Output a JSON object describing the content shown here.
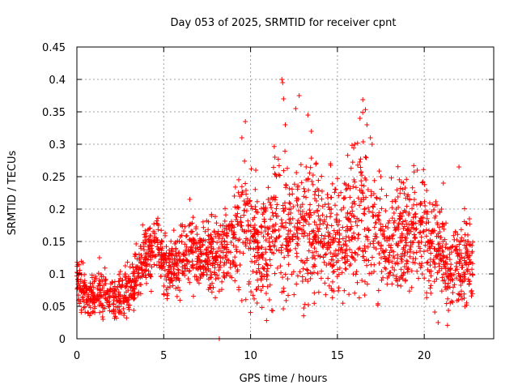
{
  "chart_data": {
    "type": "scatter",
    "title": "Day 053 of 2025, SRMTID for receiver cpnt",
    "xlabel": "GPS time / hours",
    "ylabel": "SRMTID / TECUs",
    "xlim": [
      0,
      24
    ],
    "ylim": [
      0,
      0.45
    ],
    "x_ticks": [
      0,
      5,
      10,
      15,
      20
    ],
    "x_tick_labels": [
      "0",
      "5",
      "10",
      "15",
      "20"
    ],
    "y_ticks": [
      0,
      0.05,
      0.1,
      0.15,
      0.2,
      0.25,
      0.3,
      0.35,
      0.4,
      0.45
    ],
    "y_tick_labels": [
      "0",
      "0.05",
      "0.1",
      "0.15",
      "0.2",
      "0.25",
      "0.3",
      "0.35",
      "0.4",
      "0.45"
    ],
    "grid": true,
    "marker": "+",
    "series_color": "#ff0000",
    "series": [
      {
        "name": "SRMTID",
        "trend": [
          [
            0.0,
            0.1,
            0.02
          ],
          [
            0.5,
            0.065,
            0.015
          ],
          [
            1.0,
            0.065,
            0.015
          ],
          [
            1.5,
            0.07,
            0.02
          ],
          [
            2.0,
            0.06,
            0.015
          ],
          [
            2.5,
            0.07,
            0.02
          ],
          [
            3.0,
            0.075,
            0.02
          ],
          [
            3.5,
            0.1,
            0.02
          ],
          [
            4.0,
            0.13,
            0.025
          ],
          [
            4.5,
            0.145,
            0.025
          ],
          [
            5.0,
            0.12,
            0.025
          ],
          [
            5.5,
            0.11,
            0.02
          ],
          [
            6.0,
            0.12,
            0.025
          ],
          [
            6.5,
            0.14,
            0.03
          ],
          [
            7.0,
            0.13,
            0.025
          ],
          [
            7.5,
            0.13,
            0.03
          ],
          [
            8.0,
            0.13,
            0.025
          ],
          [
            8.5,
            0.14,
            0.03
          ],
          [
            9.0,
            0.15,
            0.035
          ],
          [
            9.5,
            0.18,
            0.05
          ],
          [
            10.0,
            0.16,
            0.05
          ],
          [
            10.5,
            0.13,
            0.04
          ],
          [
            11.0,
            0.13,
            0.045
          ],
          [
            11.5,
            0.17,
            0.05
          ],
          [
            12.0,
            0.18,
            0.06
          ],
          [
            12.5,
            0.17,
            0.05
          ],
          [
            13.0,
            0.18,
            0.06
          ],
          [
            13.5,
            0.18,
            0.05
          ],
          [
            14.0,
            0.17,
            0.045
          ],
          [
            14.5,
            0.16,
            0.04
          ],
          [
            15.0,
            0.15,
            0.04
          ],
          [
            15.5,
            0.16,
            0.04
          ],
          [
            16.0,
            0.18,
            0.05
          ],
          [
            16.5,
            0.2,
            0.06
          ],
          [
            17.0,
            0.17,
            0.05
          ],
          [
            17.5,
            0.15,
            0.04
          ],
          [
            18.0,
            0.14,
            0.035
          ],
          [
            18.5,
            0.16,
            0.04
          ],
          [
            19.0,
            0.16,
            0.04
          ],
          [
            19.5,
            0.17,
            0.04
          ],
          [
            20.0,
            0.17,
            0.04
          ],
          [
            20.5,
            0.14,
            0.04
          ],
          [
            21.0,
            0.13,
            0.035
          ],
          [
            21.5,
            0.11,
            0.03
          ],
          [
            22.0,
            0.12,
            0.035
          ],
          [
            22.5,
            0.12,
            0.035
          ],
          [
            22.8,
            0.1,
            0.03
          ]
        ],
        "spikes": [
          [
            11.8,
            0.4
          ],
          [
            11.85,
            0.395
          ],
          [
            11.9,
            0.37
          ],
          [
            12.0,
            0.33
          ],
          [
            12.8,
            0.375
          ],
          [
            12.6,
            0.355
          ],
          [
            13.3,
            0.345
          ],
          [
            13.5,
            0.32
          ],
          [
            9.7,
            0.335
          ],
          [
            9.5,
            0.31
          ],
          [
            16.3,
            0.34
          ],
          [
            16.7,
            0.33
          ],
          [
            16.9,
            0.31
          ],
          [
            17.0,
            0.3
          ],
          [
            16.0,
            0.3
          ],
          [
            21.1,
            0.24
          ],
          [
            22.0,
            0.265
          ],
          [
            19.6,
            0.26
          ],
          [
            8.2,
            0.0
          ],
          [
            20.8,
            0.025
          ],
          [
            1.3,
            0.125
          ],
          [
            4.7,
            0.175
          ],
          [
            6.5,
            0.215
          ],
          [
            14.6,
            0.27
          ],
          [
            11.4,
            0.28
          ],
          [
            10.3,
            0.26
          ],
          [
            15.5,
            0.23
          ],
          [
            17.5,
            0.25
          ],
          [
            21.0,
            0.2
          ],
          [
            22.6,
            0.185
          ]
        ],
        "x_range_hours": [
          0,
          22.8
        ],
        "approx_point_count": 2400
      }
    ]
  }
}
